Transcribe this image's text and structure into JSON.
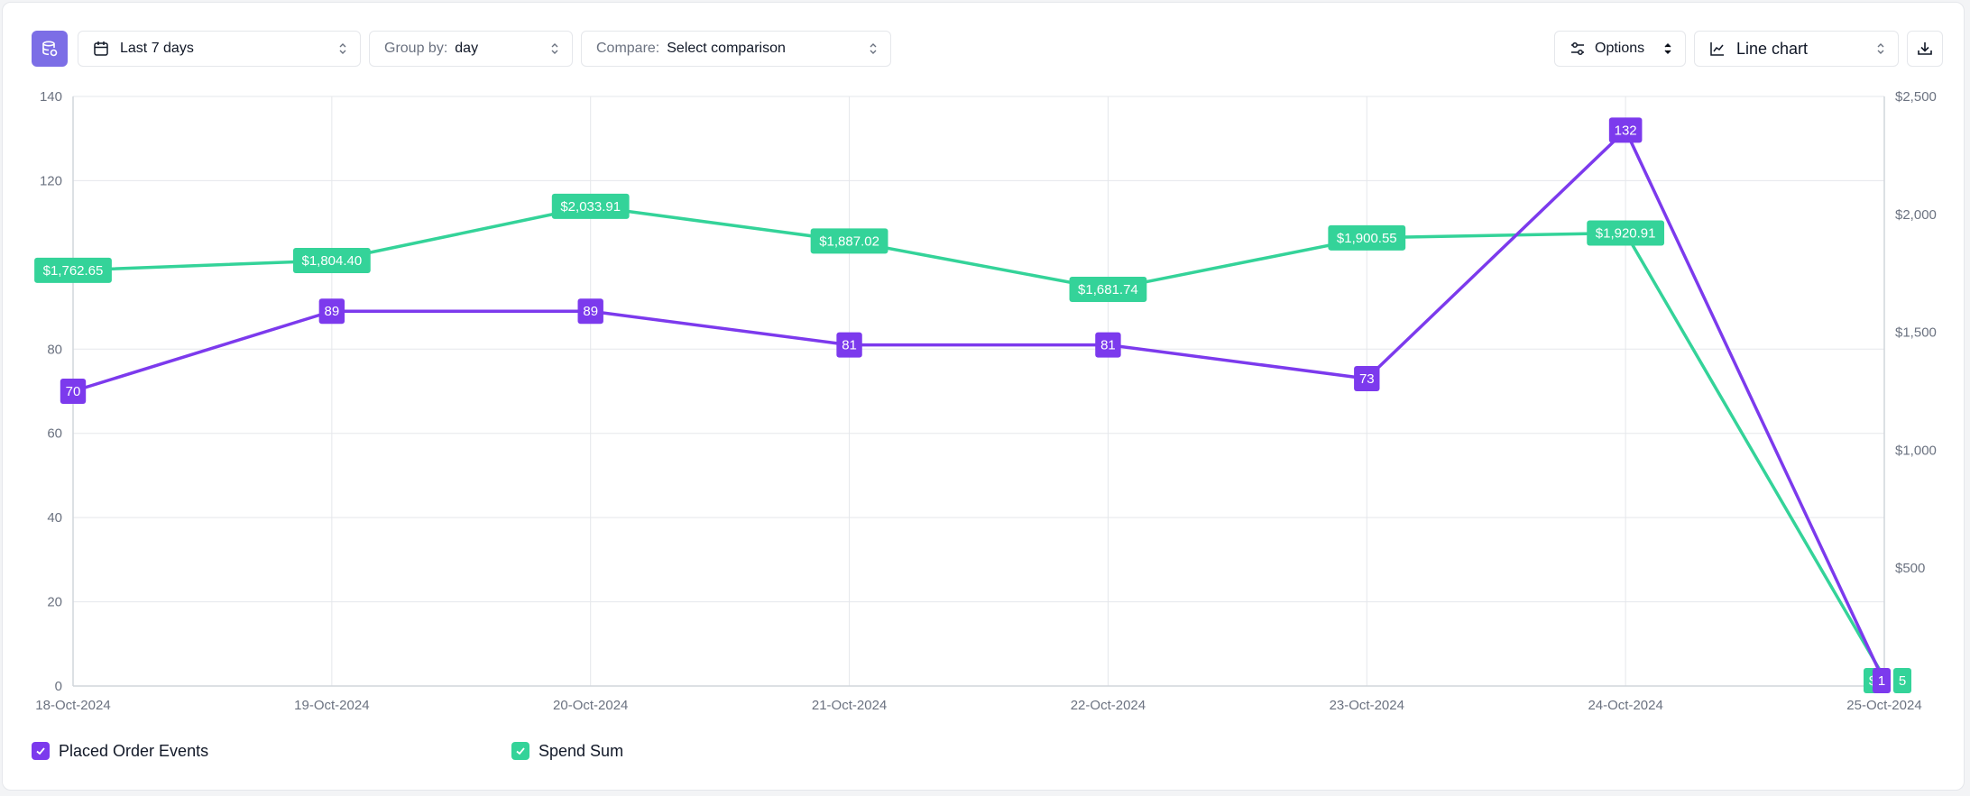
{
  "toolbar": {
    "date_range": "Last 7 days",
    "group_by_label": "Group by:",
    "group_by_value": "day",
    "compare_label": "Compare:",
    "compare_value": "Select comparison",
    "options_label": "Options",
    "chart_type_label": "Line chart"
  },
  "colors": {
    "accent": "#7c6ee6",
    "placed_order": "#7c3aed",
    "spend": "#34d399",
    "grid": "#e5e7eb",
    "axis_text": "#6b7280"
  },
  "icons": {
    "primary": "database-icon",
    "date": "calendar-icon",
    "options": "sliders-icon",
    "chart_type": "line-chart-icon",
    "download": "download-icon"
  },
  "chart_data": {
    "type": "line",
    "x": [
      "18-Oct-2024",
      "19-Oct-2024",
      "20-Oct-2024",
      "21-Oct-2024",
      "22-Oct-2024",
      "23-Oct-2024",
      "24-Oct-2024",
      "25-Oct-2024"
    ],
    "series": [
      {
        "name": "Placed Order Events",
        "axis": "left",
        "values": [
          70,
          89,
          89,
          81,
          81,
          73,
          132,
          1
        ],
        "labels": [
          "70",
          "89",
          "89",
          "81",
          "81",
          "73",
          "132",
          "1"
        ]
      },
      {
        "name": "Spend Sum",
        "axis": "right",
        "values": [
          1762.65,
          1804.4,
          2033.91,
          1887.02,
          1681.74,
          1900.55,
          1920.91,
          35
        ],
        "labels": [
          "$1,762.65",
          "$1,804.40",
          "$2,033.91",
          "$1,887.02",
          "$1,681.74",
          "$1,900.55",
          "$1,920.91",
          "$"
        ]
      }
    ],
    "y_left": {
      "ylim": [
        0,
        140
      ],
      "ticks": [
        "0",
        "20",
        "40",
        "60",
        "80",
        "120",
        "140"
      ],
      "tick_values": [
        0,
        20,
        40,
        60,
        80,
        120,
        140
      ]
    },
    "y_right": {
      "ylim": [
        0,
        2500
      ],
      "ticks": [
        "$500",
        "$1,000",
        "$1,500",
        "$2,000",
        "$2,500"
      ],
      "tick_values": [
        500,
        1000,
        1500,
        2000,
        2500
      ]
    },
    "grid": true,
    "legend_position": "bottom-left"
  }
}
